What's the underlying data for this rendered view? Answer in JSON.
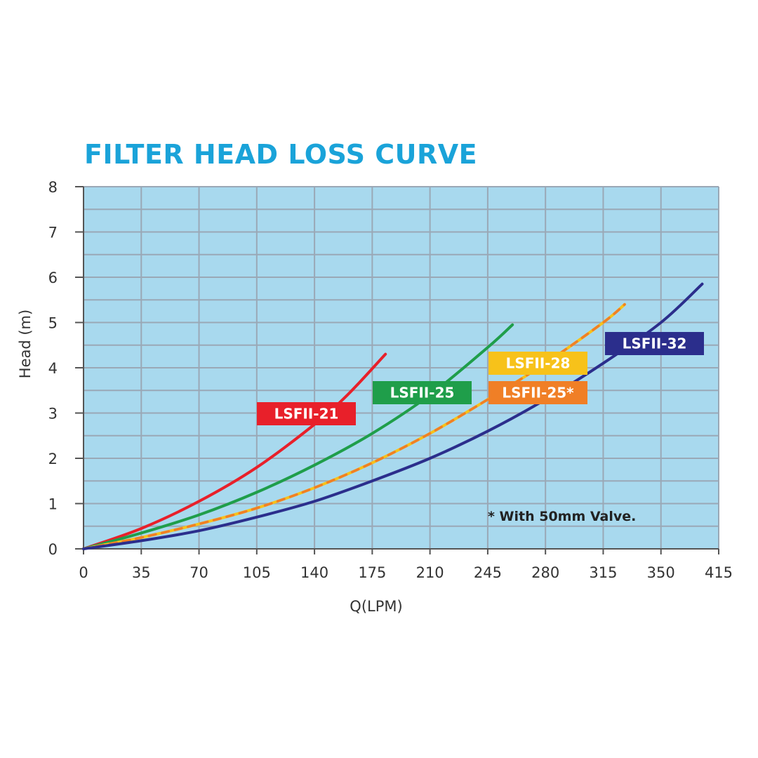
{
  "chart_data": {
    "type": "line",
    "title": "FILTER HEAD LOSS CURVE",
    "xlabel": "Q(LPM)",
    "ylabel": "Head (m)",
    "x_ticks": [
      "0",
      "35",
      "70",
      "105",
      "140",
      "175",
      "210",
      "245",
      "280",
      "315",
      "350",
      "415"
    ],
    "y_ticks": [
      "0",
      "1",
      "2",
      "3",
      "4",
      "5",
      "6",
      "7",
      "8"
    ],
    "ylim": [
      0,
      8
    ],
    "grid": true,
    "background_color": "#a8d9ee",
    "grid_color": "#9aa8b6",
    "annotation": "* With 50mm Valve.",
    "series": [
      {
        "name": "LSFII-21",
        "color": "#e8202a",
        "label_color": "#e8202a",
        "style": "solid",
        "x": [
          0,
          35,
          70,
          105,
          140,
          160,
          183
        ],
        "y": [
          0,
          0.45,
          1.05,
          1.8,
          2.75,
          3.4,
          4.3
        ]
      },
      {
        "name": "LSFII-25",
        "color": "#1f9e4a",
        "label_color": "#1f9e4a",
        "style": "solid",
        "x": [
          0,
          35,
          70,
          105,
          140,
          175,
          210,
          245,
          260
        ],
        "y": [
          0,
          0.35,
          0.75,
          1.25,
          1.85,
          2.55,
          3.4,
          4.45,
          4.95
        ]
      },
      {
        "name": "LSFII-28",
        "color": "#f7c21a",
        "label_color": "#f7c21a",
        "style": "solid",
        "x": [
          0,
          35,
          70,
          105,
          140,
          175,
          210,
          245,
          280,
          315,
          328
        ],
        "y": [
          0,
          0.25,
          0.55,
          0.9,
          1.35,
          1.9,
          2.55,
          3.3,
          4.1,
          5.0,
          5.4
        ]
      },
      {
        "name": "LSFII-25*",
        "color": "#f07f26",
        "label_color": "#f07f26",
        "style": "dashed",
        "x": [
          0,
          35,
          70,
          105,
          140,
          175,
          210,
          245,
          280,
          315,
          328
        ],
        "y": [
          0,
          0.25,
          0.55,
          0.9,
          1.35,
          1.9,
          2.55,
          3.3,
          4.1,
          5.0,
          5.4
        ]
      },
      {
        "name": "LSFII-32",
        "color": "#2b2e8c",
        "label_color": "#2b2e8c",
        "style": "solid",
        "x": [
          0,
          35,
          70,
          105,
          140,
          175,
          210,
          245,
          280,
          315,
          350,
          375
        ],
        "y": [
          0,
          0.18,
          0.4,
          0.7,
          1.05,
          1.5,
          2.0,
          2.6,
          3.3,
          4.1,
          5.0,
          5.85
        ]
      }
    ]
  }
}
